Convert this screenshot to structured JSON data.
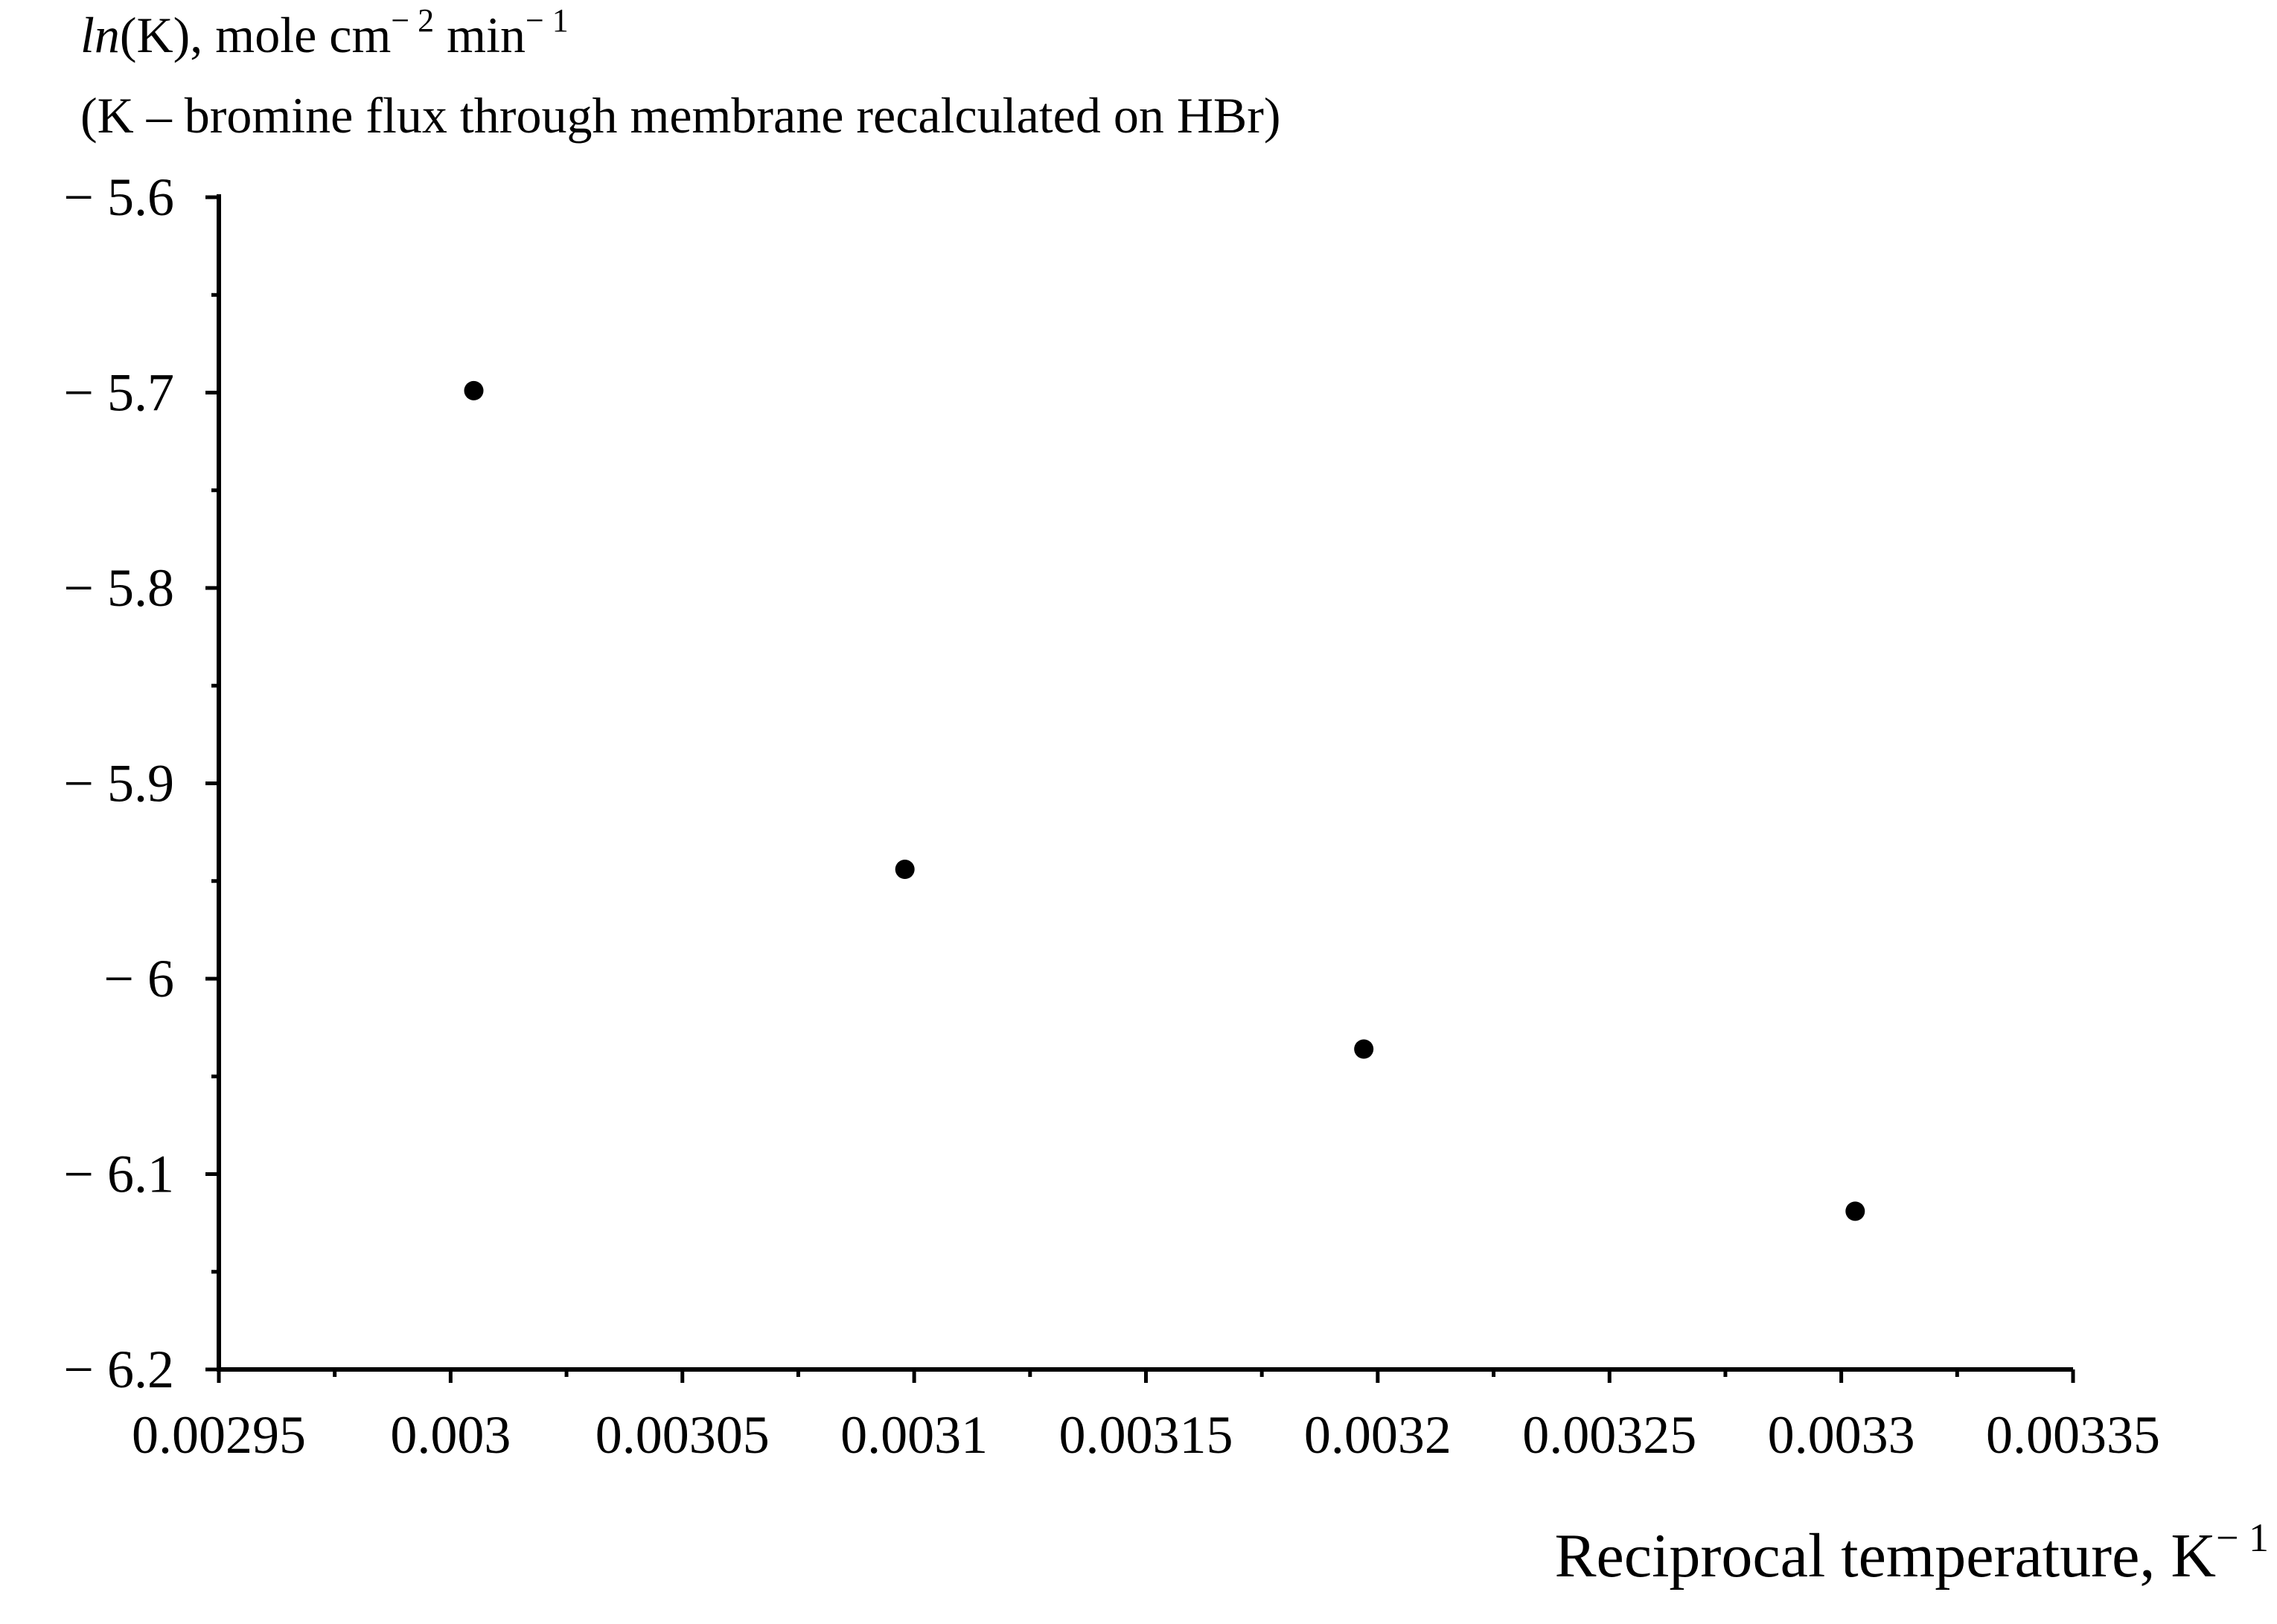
{
  "chart_data": {
    "type": "scatter",
    "title": "",
    "ylabel": {
      "prefix": "ln",
      "main": "(K), mole cm",
      "sup1": "− 2",
      "mid": " min",
      "sup2": "− 1"
    },
    "ylabel_note": "(K – bromine flux through membrane recalculated on HBr)",
    "xlabel": {
      "main": "Reciprocal temperature, K",
      "sup": "− 1"
    },
    "xlim": [
      0.00295,
      0.00335
    ],
    "ylim": [
      -6.2,
      -5.6
    ],
    "xticks": [
      0.00295,
      0.003,
      0.00305,
      0.0031,
      0.00315,
      0.0032,
      0.00325,
      0.0033,
      0.00335
    ],
    "xtick_labels": [
      "0.00295",
      "0.003",
      "0.00305",
      "0.0031",
      "0.00315",
      "0.0032",
      "0.00325",
      "0.0033",
      "0.00335"
    ],
    "yticks": [
      -5.6,
      -5.7,
      -5.8,
      -5.9,
      -6,
      -6.1,
      -6.2
    ],
    "ytick_labels": [
      "− 5.6",
      "− 5.7",
      "− 5.8",
      "− 5.9",
      "− 6",
      "− 6.1",
      "− 6.2"
    ],
    "grid": false,
    "legend": "none",
    "marker_color": "#000000",
    "points": [
      {
        "x": 0.003005,
        "y": -5.699
      },
      {
        "x": 0.003098,
        "y": -5.944
      },
      {
        "x": 0.003197,
        "y": -6.036
      },
      {
        "x": 0.003303,
        "y": -6.119
      }
    ]
  }
}
